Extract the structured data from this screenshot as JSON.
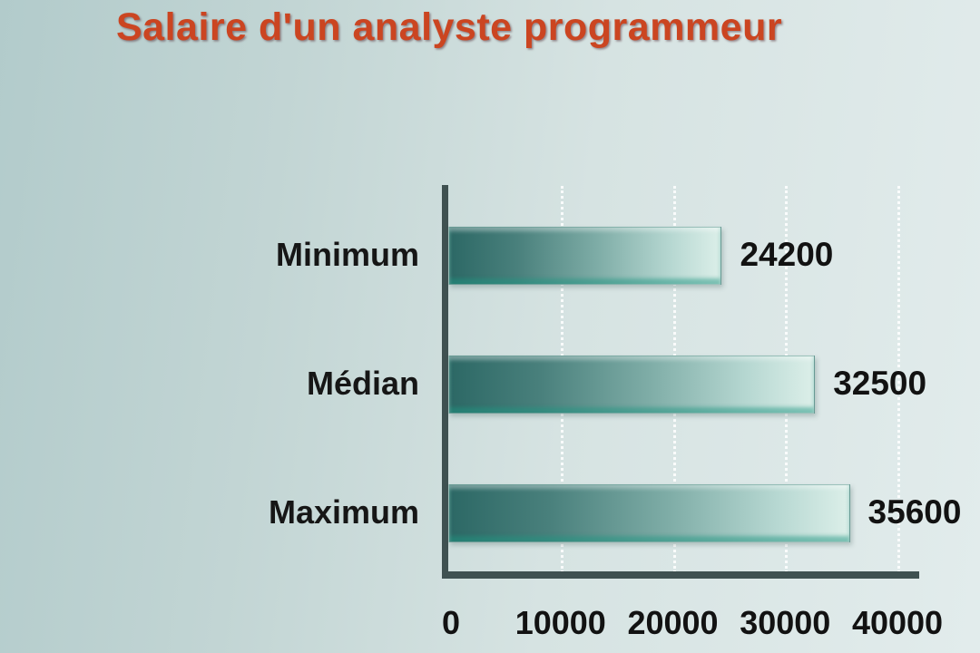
{
  "title": "Salaire d'un analyste programmeur",
  "chart_data": {
    "type": "bar",
    "orientation": "horizontal",
    "title": "Salaire d'un analyste programmeur",
    "categories": [
      "Minimum",
      "Médian",
      "Maximum"
    ],
    "values": [
      24200,
      32500,
      35600
    ],
    "value_labels": [
      "24200",
      "32500",
      "35600"
    ],
    "xlim": [
      0,
      40000
    ],
    "x_ticks": [
      0,
      10000,
      20000,
      30000,
      40000
    ],
    "x_tick_labels": [
      "0",
      "10000",
      "20000",
      "30000",
      "40000"
    ],
    "grid": "vertical-dotted-white",
    "legend": "none",
    "colors": {
      "title_text": "#cb4521",
      "bar_gradient_dark": "#2c6865",
      "bar_gradient_light": "#dcefe9",
      "bar_bottom_edge": "#2f9a86",
      "axis": "#3f5151",
      "background_left": "#b2cbcb",
      "background_right": "#e2ecec",
      "label_text": "#161616"
    }
  }
}
